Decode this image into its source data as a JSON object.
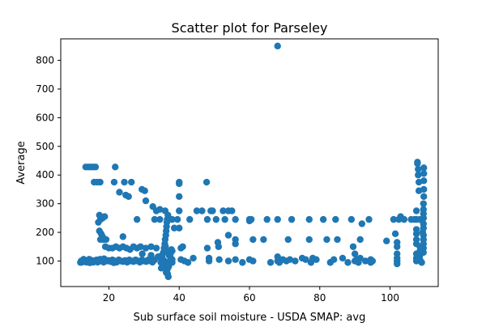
{
  "chart_data": {
    "type": "scatter",
    "title": "Scatter plot for Parseley",
    "xlabel": "Sub surface soil moisture - USDA SMAP: avg",
    "ylabel": "Average",
    "xlim": [
      6.3,
      113.7
    ],
    "ylim": [
      11,
      875
    ],
    "xticks": [
      20,
      40,
      60,
      80,
      100
    ],
    "yticks": [
      100,
      200,
      300,
      400,
      500,
      600,
      700,
      800
    ],
    "grid": false,
    "marker_color": "#1f77b4",
    "series": [
      {
        "points": [
          [
            11.9,
            95
          ],
          [
            12.1,
            100
          ],
          [
            12.4,
            96
          ],
          [
            12.7,
            100
          ],
          [
            13.0,
            104
          ],
          [
            13.3,
            98
          ],
          [
            13.6,
            96
          ],
          [
            14.0,
            100
          ],
          [
            14.4,
            106
          ],
          [
            14.8,
            98
          ],
          [
            15.2,
            102
          ],
          [
            15.6,
            96
          ],
          [
            16.0,
            100
          ],
          [
            16.5,
            104
          ],
          [
            17.0,
            98
          ],
          [
            17.5,
            106
          ],
          [
            18.0,
            100
          ],
          [
            18.5,
            96
          ],
          [
            19.0,
            104
          ],
          [
            19.5,
            100
          ],
          [
            20.0,
            102
          ],
          [
            20.5,
            98
          ],
          [
            21.0,
            104
          ],
          [
            21.6,
            100
          ],
          [
            22.2,
            96
          ],
          [
            22.8,
            104
          ],
          [
            23.4,
            100
          ],
          [
            24.0,
            98
          ],
          [
            24.6,
            102
          ],
          [
            25.2,
            96
          ],
          [
            25.8,
            104
          ],
          [
            26.4,
            100
          ],
          [
            27.0,
            98
          ],
          [
            27.6,
            104
          ],
          [
            28.2,
            100
          ],
          [
            28.8,
            96
          ],
          [
            29.4,
            104
          ],
          [
            30.0,
            100
          ],
          [
            30.6,
            98
          ],
          [
            31.2,
            104
          ],
          [
            31.8,
            100
          ],
          [
            32.4,
            96
          ],
          [
            33.0,
            104
          ],
          [
            12.8,
            106
          ],
          [
            14.6,
            94
          ],
          [
            16.8,
            96
          ],
          [
            18.6,
            108
          ],
          [
            21.4,
            94
          ],
          [
            13.4,
            428
          ],
          [
            14.1,
            428
          ],
          [
            14.8,
            428
          ],
          [
            15.5,
            428
          ],
          [
            16.2,
            428
          ],
          [
            21.8,
            428
          ],
          [
            15.8,
            375
          ],
          [
            16.7,
            375
          ],
          [
            17.5,
            375
          ],
          [
            21.5,
            375
          ],
          [
            24.4,
            375
          ],
          [
            26.4,
            375
          ],
          [
            29.4,
            350
          ],
          [
            30.2,
            345
          ],
          [
            23.0,
            340
          ],
          [
            24.8,
            330
          ],
          [
            25.6,
            325
          ],
          [
            30.5,
            310
          ],
          [
            32.5,
            290
          ],
          [
            33.5,
            275
          ],
          [
            34.5,
            280
          ],
          [
            17.3,
            260
          ],
          [
            17.6,
            245
          ],
          [
            18.2,
            250
          ],
          [
            18.8,
            255
          ],
          [
            17.0,
            235
          ],
          [
            17.3,
            205
          ],
          [
            17.8,
            195
          ],
          [
            18.2,
            185
          ],
          [
            17.6,
            175
          ],
          [
            18.5,
            175
          ],
          [
            19.2,
            175
          ],
          [
            24.0,
            185
          ],
          [
            19.0,
            150
          ],
          [
            20.0,
            145
          ],
          [
            21.0,
            145
          ],
          [
            22.0,
            150
          ],
          [
            23.0,
            145
          ],
          [
            24.0,
            150
          ],
          [
            25.0,
            145
          ],
          [
            26.0,
            140
          ],
          [
            27.0,
            150
          ],
          [
            28.0,
            145
          ],
          [
            29.0,
            150
          ],
          [
            30.5,
            145
          ],
          [
            32.0,
            150
          ],
          [
            33.5,
            145
          ],
          [
            28.0,
            245
          ],
          [
            33.0,
            245
          ],
          [
            34.5,
            245
          ],
          [
            32.0,
            120
          ],
          [
            34.0,
            115
          ],
          [
            29.5,
            125
          ],
          [
            34.8,
            95
          ],
          [
            35.2,
            110
          ],
          [
            35.5,
            130
          ],
          [
            35.7,
            145
          ],
          [
            35.9,
            160
          ],
          [
            36.0,
            175
          ],
          [
            36.2,
            190
          ],
          [
            36.3,
            205
          ],
          [
            36.4,
            220
          ],
          [
            36.5,
            235
          ],
          [
            36.6,
            245
          ],
          [
            36.0,
            275
          ],
          [
            36.8,
            260
          ],
          [
            36.7,
            55
          ],
          [
            36.9,
            45
          ],
          [
            36.6,
            70
          ],
          [
            37.0,
            80
          ],
          [
            37.2,
            90
          ],
          [
            37.4,
            100
          ],
          [
            37.6,
            110
          ],
          [
            37.1,
            120
          ],
          [
            36.4,
            135
          ],
          [
            35.8,
            100
          ],
          [
            35.4,
            85
          ],
          [
            34.9,
            75
          ],
          [
            35.1,
            120
          ],
          [
            37.5,
            125
          ],
          [
            37.8,
            140
          ],
          [
            36.1,
            150
          ],
          [
            36.3,
            60
          ],
          [
            38.0,
            95
          ],
          [
            38.0,
            105
          ],
          [
            38.0,
            135
          ],
          [
            38.0,
            245
          ],
          [
            39.5,
            245
          ],
          [
            38.6,
            215
          ],
          [
            40.0,
            215
          ],
          [
            40.0,
            375
          ],
          [
            40.0,
            370
          ],
          [
            40.0,
            325
          ],
          [
            40.0,
            275
          ],
          [
            40.5,
            145
          ],
          [
            41.0,
            150
          ],
          [
            40.5,
            105
          ],
          [
            41.5,
            100
          ],
          [
            42.5,
            95
          ],
          [
            43.0,
            245
          ],
          [
            44.0,
            110
          ],
          [
            45.0,
            275
          ],
          [
            46.5,
            275
          ],
          [
            47.8,
            375
          ],
          [
            48.0,
            245
          ],
          [
            48.0,
            145
          ],
          [
            48.5,
            100
          ],
          [
            48.5,
            110
          ],
          [
            49.0,
            275
          ],
          [
            49.5,
            275
          ],
          [
            50.5,
            245
          ],
          [
            51.0,
            165
          ],
          [
            51.2,
            150
          ],
          [
            51.4,
            105
          ],
          [
            52.5,
            275
          ],
          [
            53.0,
            245
          ],
          [
            54.0,
            275
          ],
          [
            54.0,
            100
          ],
          [
            54.0,
            190
          ],
          [
            55.0,
            275
          ],
          [
            56.0,
            245
          ],
          [
            56.0,
            175
          ],
          [
            56.0,
            160
          ],
          [
            56.0,
            105
          ],
          [
            58.0,
            95
          ],
          [
            60.0,
            245
          ],
          [
            60.0,
            240
          ],
          [
            60.5,
            245
          ],
          [
            61.0,
            100
          ],
          [
            61.0,
            175
          ],
          [
            60.0,
            105
          ],
          [
            64.0,
            175
          ],
          [
            65.0,
            245
          ],
          [
            66.0,
            95
          ],
          [
            68.0,
            850
          ],
          [
            68.0,
            245
          ],
          [
            68.0,
            115
          ],
          [
            68.0,
            100
          ],
          [
            68.5,
            95
          ],
          [
            69.5,
            105
          ],
          [
            70.5,
            100
          ],
          [
            71.0,
            175
          ],
          [
            71.5,
            105
          ],
          [
            72.0,
            245
          ],
          [
            73.0,
            100
          ],
          [
            75.0,
            110
          ],
          [
            76.0,
            105
          ],
          [
            77.0,
            245
          ],
          [
            77.0,
            175
          ],
          [
            77.5,
            95
          ],
          [
            78.0,
            110
          ],
          [
            79.0,
            105
          ],
          [
            81.0,
            245
          ],
          [
            82.0,
            175
          ],
          [
            83.0,
            95
          ],
          [
            84.0,
            105
          ],
          [
            84.5,
            245
          ],
          [
            85.0,
            175
          ],
          [
            86.5,
            110
          ],
          [
            88.0,
            95
          ],
          [
            89.0,
            245
          ],
          [
            89.5,
            150
          ],
          [
            90.0,
            125
          ],
          [
            90.0,
            100
          ],
          [
            90.5,
            105
          ],
          [
            91.0,
            95
          ],
          [
            91.5,
            175
          ],
          [
            91.5,
            110
          ],
          [
            92.0,
            230
          ],
          [
            93.0,
            100
          ],
          [
            94.0,
            245
          ],
          [
            94.5,
            105
          ],
          [
            94.5,
            95
          ],
          [
            95.0,
            100
          ],
          [
            99.0,
            170
          ],
          [
            101.0,
            245
          ],
          [
            101.5,
            195
          ],
          [
            102.0,
            165
          ],
          [
            102.0,
            150
          ],
          [
            102.0,
            125
          ],
          [
            102.0,
            110
          ],
          [
            102.0,
            100
          ],
          [
            102.0,
            90
          ],
          [
            102.5,
            245
          ],
          [
            103.0,
            255
          ],
          [
            104.0,
            245
          ],
          [
            106.0,
            245
          ],
          [
            107.0,
            245
          ],
          [
            107.5,
            110
          ],
          [
            107.5,
            100
          ],
          [
            107.5,
            125
          ],
          [
            107.5,
            160
          ],
          [
            107.5,
            175
          ],
          [
            107.5,
            195
          ],
          [
            107.5,
            210
          ],
          [
            107.5,
            245
          ],
          [
            107.5,
            275
          ],
          [
            107.8,
            440
          ],
          [
            107.8,
            445
          ],
          [
            108.0,
            420
          ],
          [
            108.0,
            400
          ],
          [
            108.2,
            375
          ],
          [
            108.2,
            345
          ],
          [
            108.5,
            245
          ],
          [
            108.5,
            150
          ],
          [
            108.5,
            135
          ],
          [
            108.5,
            120
          ],
          [
            108.5,
            105
          ],
          [
            109.0,
            95
          ],
          [
            109.3,
            200
          ],
          [
            109.5,
            280
          ],
          [
            109.5,
            300
          ],
          [
            109.5,
            230
          ],
          [
            109.5,
            215
          ],
          [
            109.5,
            190
          ],
          [
            109.5,
            175
          ],
          [
            109.5,
            160
          ],
          [
            109.5,
            145
          ],
          [
            109.5,
            130
          ],
          [
            109.5,
            265
          ],
          [
            109.5,
            250
          ],
          [
            109.5,
            250
          ],
          [
            109.6,
            325
          ],
          [
            109.6,
            350
          ],
          [
            109.6,
            380
          ],
          [
            109.6,
            405
          ],
          [
            109.6,
            425
          ]
        ]
      }
    ]
  }
}
